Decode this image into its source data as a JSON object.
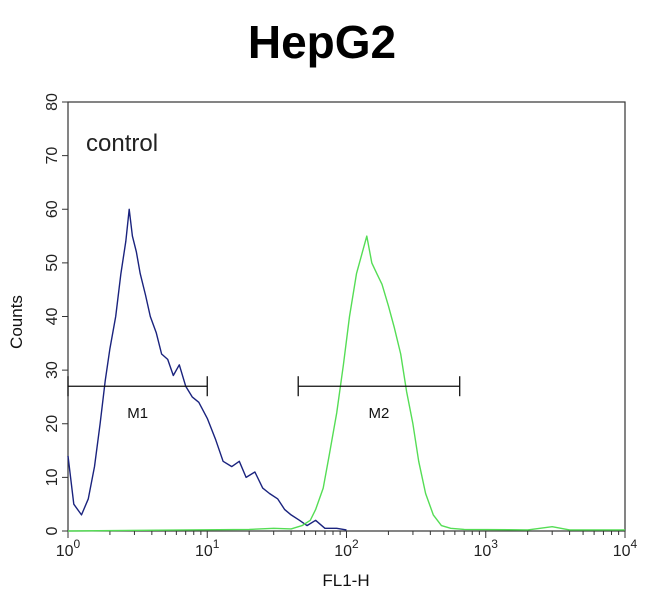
{
  "chart_data": {
    "type": "line",
    "title": "HepG2",
    "xlabel": "FL1-H",
    "ylabel": "Counts",
    "annotation": "control",
    "x_scale": "log",
    "xlim": [
      1,
      10000
    ],
    "ylim": [
      0,
      80
    ],
    "x_ticks": [
      {
        "value": 1,
        "base": "10",
        "exp": "0"
      },
      {
        "value": 10,
        "base": "10",
        "exp": "1"
      },
      {
        "value": 100,
        "base": "10",
        "exp": "2"
      },
      {
        "value": 1000,
        "base": "10",
        "exp": "3"
      },
      {
        "value": 10000,
        "base": "10",
        "exp": "4"
      }
    ],
    "y_ticks": [
      "0",
      "10",
      "20",
      "30",
      "40",
      "50",
      "60",
      "70",
      "80"
    ],
    "markers": [
      {
        "label": "M1",
        "x_start": 1,
        "x_end": 10,
        "y": 27
      },
      {
        "label": "M2",
        "x_start": 45,
        "x_end": 650,
        "y": 27
      }
    ],
    "series": [
      {
        "color": "#1a237e",
        "points": [
          [
            1.0,
            14
          ],
          [
            1.1,
            5
          ],
          [
            1.25,
            3
          ],
          [
            1.4,
            6
          ],
          [
            1.55,
            12
          ],
          [
            1.7,
            20
          ],
          [
            1.85,
            28
          ],
          [
            2.0,
            34
          ],
          [
            2.2,
            40
          ],
          [
            2.4,
            48
          ],
          [
            2.6,
            54
          ],
          [
            2.75,
            60
          ],
          [
            2.9,
            55
          ],
          [
            3.1,
            52
          ],
          [
            3.3,
            48
          ],
          [
            3.6,
            44
          ],
          [
            3.9,
            40
          ],
          [
            4.3,
            37
          ],
          [
            4.7,
            33
          ],
          [
            5.2,
            32
          ],
          [
            5.7,
            29
          ],
          [
            6.3,
            31
          ],
          [
            7.0,
            27
          ],
          [
            7.8,
            25
          ],
          [
            8.7,
            24
          ],
          [
            10,
            21
          ],
          [
            11.5,
            17
          ],
          [
            13,
            13
          ],
          [
            15,
            12
          ],
          [
            17,
            13
          ],
          [
            19,
            10
          ],
          [
            22,
            11
          ],
          [
            25,
            8
          ],
          [
            28,
            7
          ],
          [
            32,
            6
          ],
          [
            36,
            4
          ],
          [
            40,
            3
          ],
          [
            46,
            2
          ],
          [
            52,
            1
          ],
          [
            60,
            2
          ],
          [
            70,
            0.5
          ],
          [
            85,
            0.5
          ],
          [
            100,
            0.2
          ]
        ]
      },
      {
        "color": "#55dd55",
        "points": [
          [
            1,
            0
          ],
          [
            20,
            0.3
          ],
          [
            30,
            0.5
          ],
          [
            40,
            0.4
          ],
          [
            48,
            1
          ],
          [
            55,
            2
          ],
          [
            60,
            4
          ],
          [
            68,
            8
          ],
          [
            75,
            14
          ],
          [
            85,
            22
          ],
          [
            95,
            31
          ],
          [
            105,
            40
          ],
          [
            118,
            48
          ],
          [
            130,
            52
          ],
          [
            140,
            55
          ],
          [
            152,
            50
          ],
          [
            165,
            48
          ],
          [
            180,
            46
          ],
          [
            200,
            42
          ],
          [
            220,
            38
          ],
          [
            245,
            33
          ],
          [
            270,
            26
          ],
          [
            300,
            20
          ],
          [
            330,
            13
          ],
          [
            370,
            7
          ],
          [
            420,
            3
          ],
          [
            480,
            1
          ],
          [
            560,
            0.5
          ],
          [
            700,
            0.3
          ],
          [
            2000,
            0.2
          ],
          [
            3000,
            0.8
          ],
          [
            4000,
            0.2
          ],
          [
            10000,
            0.2
          ]
        ]
      }
    ]
  }
}
